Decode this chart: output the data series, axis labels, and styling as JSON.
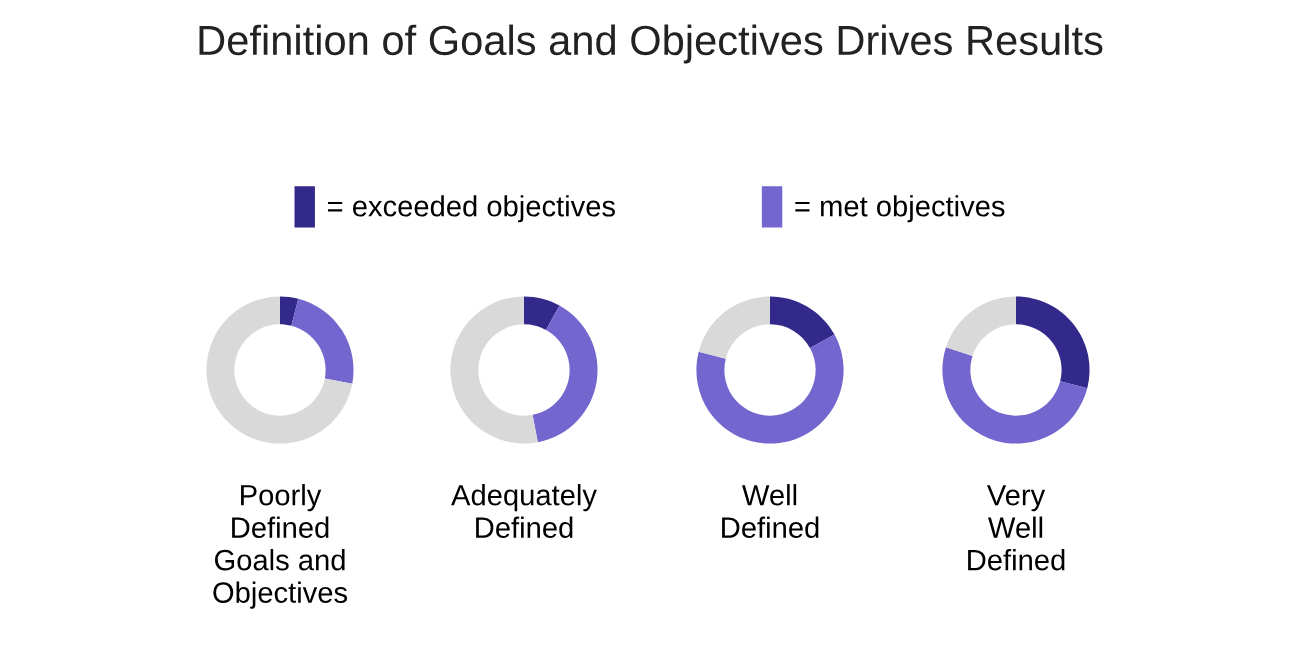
{
  "chart_data": [
    {
      "type": "donut",
      "title": "Definition of Goals and Objectives Drives Results",
      "legend": "top",
      "xlabel": "Poorly\nDefined\nGoals and\nObjectives",
      "categories": [
        "= exceeded objectives",
        "= met objectives",
        null
      ],
      "values": [
        4,
        24,
        72
      ],
      "colors": [
        "#33298a",
        "#7466cf",
        "#d9d9d9"
      ]
    },
    {
      "type": "donut",
      "xlabel": "Adequately\nDefined",
      "categories": [
        null,
        null,
        null
      ],
      "values": [
        8,
        39,
        53
      ],
      "colors": [
        "#33298a",
        "#7466cf",
        "#d9d9d9"
      ]
    },
    {
      "type": "donut",
      "xlabel": "Well\nDefined",
      "categories": [
        null,
        null,
        null
      ],
      "values": [
        17,
        62,
        21
      ],
      "colors": [
        "#33298a",
        "#7466cf",
        "#d9d9d9"
      ]
    },
    {
      "type": "donut",
      "xlabel": "Very\nWell\nDefined",
      "categories": [
        null,
        null,
        null
      ],
      "values": [
        29,
        51,
        20
      ],
      "colors": [
        "#33298a",
        "#7466cf",
        "#d9d9d9"
      ]
    }
  ]
}
